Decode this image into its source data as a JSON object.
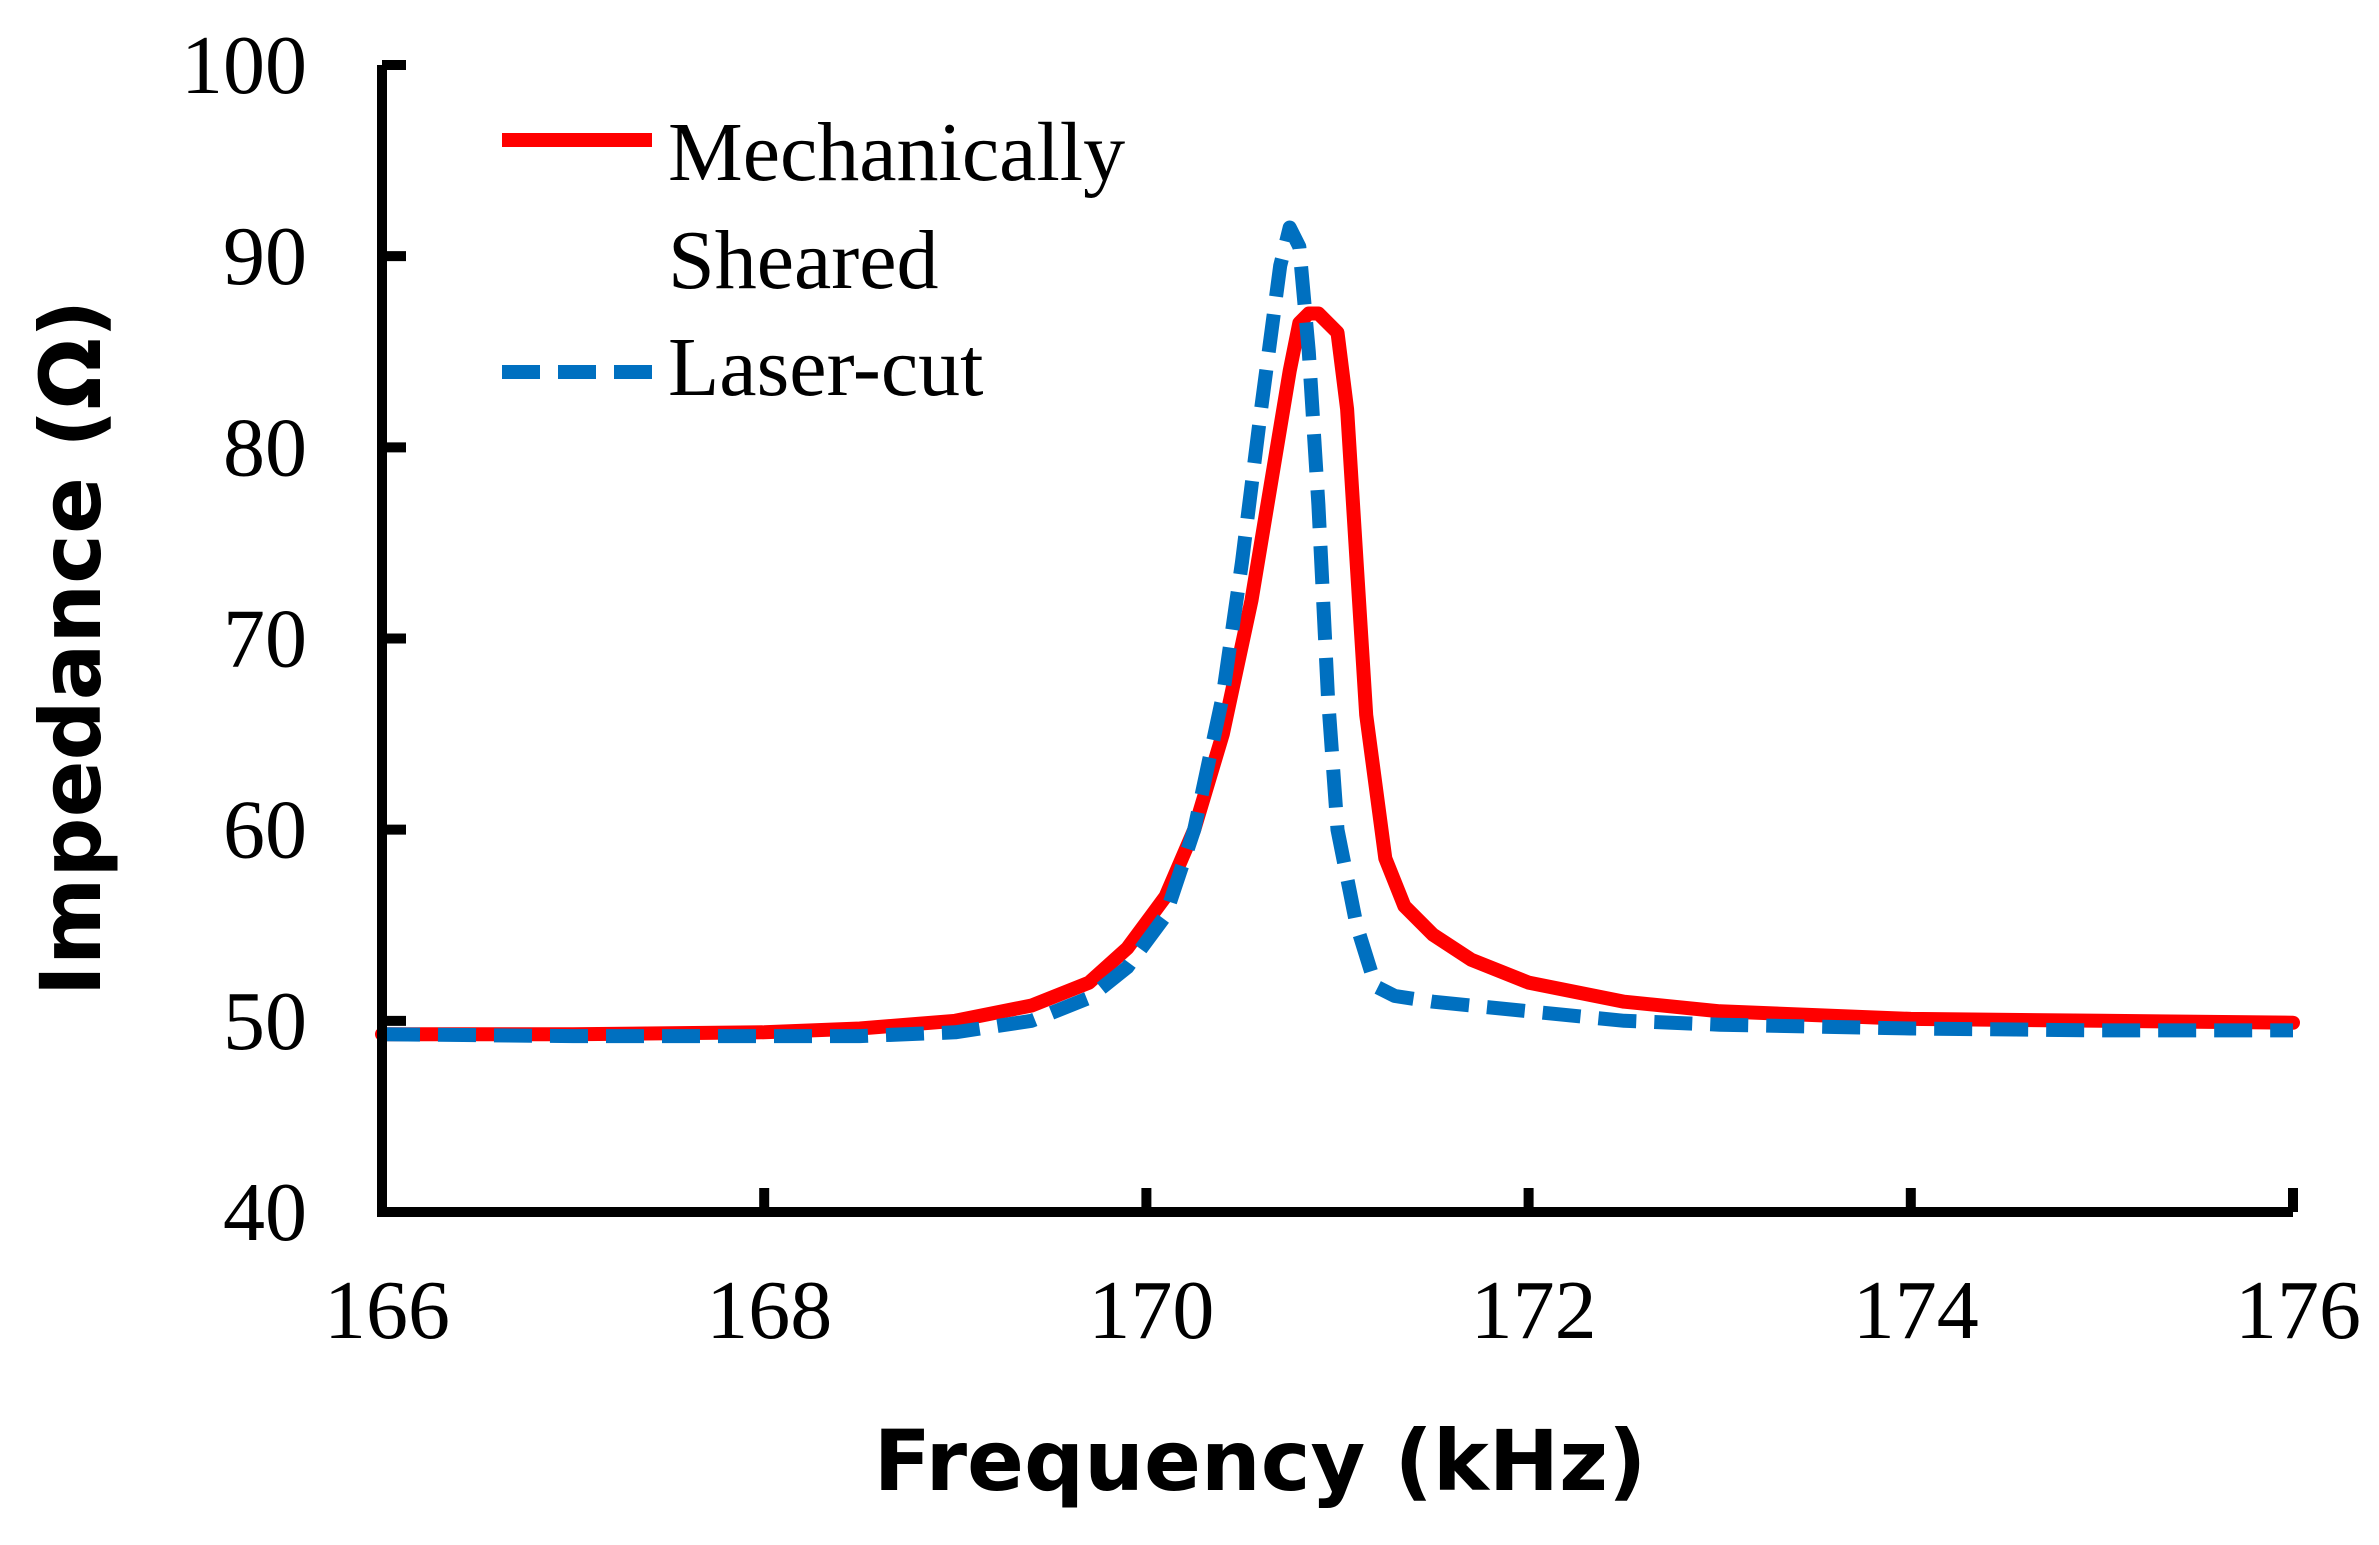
{
  "chart_data": {
    "type": "line",
    "title": "",
    "xlabel": "Frequency (kHz)",
    "ylabel": "Impedance (Ω)",
    "xlim": [
      166,
      176
    ],
    "ylim": [
      40,
      100
    ],
    "xticks": [
      166,
      168,
      170,
      172,
      174,
      176
    ],
    "yticks": [
      40,
      50,
      60,
      70,
      80,
      90,
      100
    ],
    "xtick_labels": [
      "166",
      "168",
      "170",
      "172",
      "174",
      "176"
    ],
    "ytick_labels": [
      "40",
      "50",
      "60",
      "70",
      "80",
      "90",
      "100"
    ],
    "grid": false,
    "legend_position": "top-left",
    "series": [
      {
        "name": "Mechanically Sheared",
        "legend_lines": [
          "Mechanically",
          "Sheared"
        ],
        "color": "#ff0000",
        "style": "solid",
        "x": [
          166.0,
          167.0,
          168.0,
          168.5,
          169.0,
          169.4,
          169.7,
          169.9,
          170.1,
          170.25,
          170.4,
          170.55,
          170.65,
          170.75,
          170.8,
          170.85,
          170.9,
          171.0,
          171.05,
          171.1,
          171.15,
          171.25,
          171.35,
          171.5,
          171.7,
          172.0,
          172.5,
          173.0,
          173.5,
          174.0,
          175.0,
          176.0
        ],
        "y": [
          49.3,
          49.3,
          49.4,
          49.6,
          50.0,
          50.8,
          52.0,
          53.8,
          56.5,
          60.0,
          65.0,
          72.0,
          78.0,
          84.0,
          86.5,
          87.0,
          87.0,
          86.0,
          82.0,
          74.0,
          66.0,
          58.5,
          56.0,
          54.5,
          53.2,
          52.0,
          51.0,
          50.5,
          50.3,
          50.1,
          50.0,
          49.9
        ]
      },
      {
        "name": "Laser-cut",
        "legend_lines": [
          "Laser-cut"
        ],
        "color": "#0070c0",
        "style": "dashed",
        "x": [
          166.0,
          167.0,
          168.0,
          168.5,
          169.0,
          169.4,
          169.7,
          169.9,
          170.1,
          170.25,
          170.4,
          170.5,
          170.6,
          170.7,
          170.75,
          170.8,
          170.85,
          170.9,
          170.95,
          171.0,
          171.1,
          171.2,
          171.3,
          171.5,
          172.0,
          172.5,
          173.0,
          173.5,
          174.0,
          175.0,
          176.0
        ],
        "y": [
          49.3,
          49.2,
          49.2,
          49.2,
          49.4,
          50.0,
          51.2,
          52.8,
          55.5,
          60.0,
          67.0,
          74.0,
          82.0,
          89.5,
          91.5,
          90.5,
          85.0,
          77.0,
          67.0,
          60.0,
          55.0,
          51.8,
          51.3,
          51.0,
          50.5,
          50.0,
          49.8,
          49.7,
          49.6,
          49.5,
          49.5
        ]
      }
    ]
  }
}
